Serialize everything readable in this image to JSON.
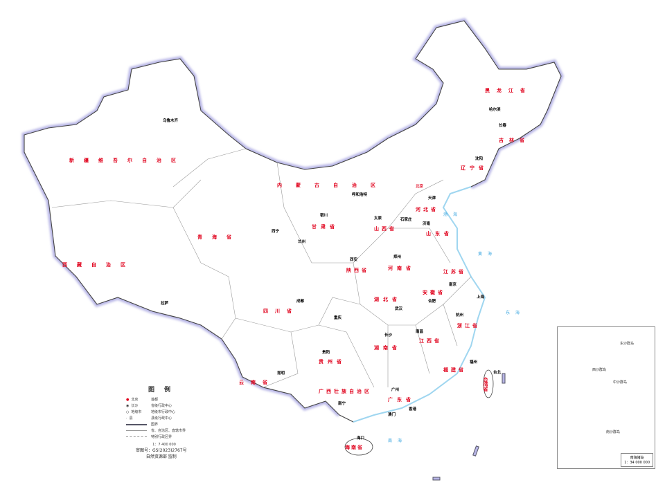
{
  "colors": {
    "border_shade": "#b7b5e6",
    "province_label": "#e0001b",
    "sea": "#3aa6e0",
    "coast": "#9fd6f0"
  },
  "provinces": [
    "新疆维吾尔自治区",
    "西藏自治区",
    "青海省",
    "甘肃省",
    "内蒙古自治区",
    "黑龙江省",
    "吉林省",
    "辽宁省",
    "四川省",
    "云南省",
    "广西壮族自治区",
    "广东省",
    "湖南省",
    "湖北省",
    "河南省",
    "山东省",
    "江苏省",
    "浙江省",
    "安徽省",
    "江西省",
    "福建省",
    "贵州省",
    "陕西省",
    "山西省",
    "河北省",
    "台湾省",
    "海南省"
  ],
  "capitals": [
    "北京",
    "乌鲁木齐",
    "拉萨",
    "西宁",
    "兰州",
    "银川",
    "呼和浩特",
    "天津",
    "石家庄",
    "太原",
    "济南",
    "郑州",
    "西安",
    "成都",
    "重庆",
    "贵阳",
    "昆明",
    "南宁",
    "广州",
    "长沙",
    "武汉",
    "南昌",
    "福州",
    "杭州",
    "上海",
    "南京",
    "合肥",
    "沈阳",
    "长春",
    "哈尔滨",
    "海口",
    "台北",
    "香港",
    "澳门"
  ],
  "seas": [
    "渤海",
    "黄海",
    "东海",
    "南海"
  ],
  "legend": {
    "title": "图例",
    "items": [
      {
        "sample": "北京",
        "label": "首都"
      },
      {
        "sample": "长沙",
        "label": "省级行政中心"
      },
      {
        "sample": "地级市",
        "label": "地级市行政中心"
      },
      {
        "sample": "县",
        "label": "县级行政中心"
      },
      {
        "sample": "",
        "label": "国界"
      },
      {
        "sample": "",
        "label": "省、自治区、直辖市界"
      },
      {
        "sample": "",
        "label": "特别行政区界"
      }
    ],
    "scale": "1：7 400 000"
  },
  "approval": {
    "number": "审图号：GS(2023)2767号",
    "issuer": "自然资源部 监制"
  },
  "inset": {
    "title": "南海诸岛",
    "scale": "1：34 000 000",
    "labels": [
      "东沙群岛",
      "西沙群岛",
      "中沙群岛",
      "南沙群岛"
    ]
  }
}
